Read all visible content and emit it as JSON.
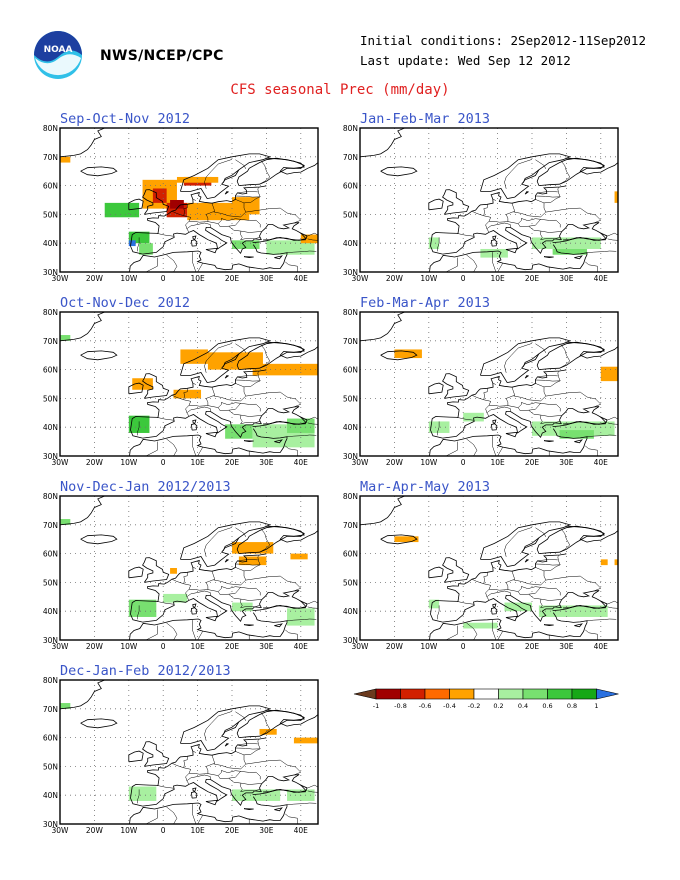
{
  "header": {
    "agency": "NWS/NCEP/CPC",
    "initial_conditions": "Initial conditions: 2Sep2012-11Sep2012",
    "last_update": "Last update: Wed Sep 12 2012",
    "title": "CFS seasonal Prec (mm/day)"
  },
  "axes": {
    "lon_labels": [
      "30W",
      "20W",
      "10W",
      "0",
      "10E",
      "20E",
      "30E",
      "40E"
    ],
    "lat_labels": [
      "80N",
      "70N",
      "60N",
      "50N",
      "40N",
      "30N"
    ]
  },
  "colors": {
    "-1": "#6b3a1e",
    "-0.8": "#a00000",
    "-0.6": "#d22000",
    "-0.4": "#ff6a00",
    "-0.2": "#ffa200",
    "0": "#ffffff",
    "0.2": "#a8f0a0",
    "0.4": "#78e070",
    "0.6": "#3cc83c",
    "0.8": "#16a816",
    "1": "#2a70e0"
  },
  "colorbar": {
    "labels": [
      "-1",
      "-0.8",
      "-0.6",
      "-0.4",
      "-0.2",
      "0.2",
      "0.4",
      "0.6",
      "0.8",
      "1"
    ]
  },
  "panels": [
    {
      "title": "Sep-Oct-Nov 2012",
      "anomalies": [
        {
          "lon": -17,
          "lat": 49,
          "w": 10,
          "h": 5,
          "c": "0.6"
        },
        {
          "lon": -10,
          "lat": 40,
          "w": 6,
          "h": 4,
          "c": "0.6"
        },
        {
          "lon": -7,
          "lat": 36,
          "w": 4,
          "h": 4,
          "c": "0.4"
        },
        {
          "lon": -10,
          "lat": 39,
          "w": 2,
          "h": 2,
          "c": "1"
        },
        {
          "lon": 20,
          "lat": 38,
          "w": 8,
          "h": 3,
          "c": "0.4"
        },
        {
          "lon": 30,
          "lat": 36,
          "w": 14,
          "h": 5,
          "c": "0.2"
        },
        {
          "lon": -30,
          "lat": 68,
          "w": 3,
          "h": 2,
          "c": "-0.2"
        },
        {
          "lon": -6,
          "lat": 52,
          "w": 10,
          "h": 10,
          "c": "-0.2"
        },
        {
          "lon": -3,
          "lat": 54,
          "w": 4,
          "h": 5,
          "c": "-0.6"
        },
        {
          "lon": 1,
          "lat": 49,
          "w": 6,
          "h": 5,
          "c": "-0.6"
        },
        {
          "lon": 2,
          "lat": 52,
          "w": 4,
          "h": 3,
          "c": "-0.8"
        },
        {
          "lon": 7,
          "lat": 48,
          "w": 18,
          "h": 6,
          "c": "-0.2"
        },
        {
          "lon": 20,
          "lat": 50,
          "w": 8,
          "h": 6,
          "c": "-0.2"
        },
        {
          "lon": 6,
          "lat": 60,
          "w": 8,
          "h": 3,
          "c": "-0.6"
        },
        {
          "lon": 4,
          "lat": 61,
          "w": 12,
          "h": 2,
          "c": "-0.2"
        },
        {
          "lon": 40,
          "lat": 40,
          "w": 5,
          "h": 3,
          "c": "-0.2"
        }
      ]
    },
    {
      "title": "Oct-Nov-Dec 2012",
      "anomalies": [
        {
          "lon": -30,
          "lat": 70,
          "w": 3,
          "h": 2,
          "c": "0.4"
        },
        {
          "lon": -10,
          "lat": 38,
          "w": 6,
          "h": 6,
          "c": "0.6"
        },
        {
          "lon": 18,
          "lat": 36,
          "w": 8,
          "h": 5,
          "c": "0.4"
        },
        {
          "lon": 26,
          "lat": 33,
          "w": 18,
          "h": 8,
          "c": "0.2"
        },
        {
          "lon": 36,
          "lat": 38,
          "w": 8,
          "h": 5,
          "c": "0.4"
        },
        {
          "lon": 5,
          "lat": 62,
          "w": 8,
          "h": 5,
          "c": "-0.2"
        },
        {
          "lon": 13,
          "lat": 60,
          "w": 16,
          "h": 6,
          "c": "-0.2"
        },
        {
          "lon": 26,
          "lat": 58,
          "w": 19,
          "h": 4,
          "c": "-0.2"
        },
        {
          "lon": -9,
          "lat": 53,
          "w": 6,
          "h": 4,
          "c": "-0.2"
        },
        {
          "lon": 3,
          "lat": 50,
          "w": 8,
          "h": 3,
          "c": "-0.2"
        }
      ]
    },
    {
      "title": "Nov-Dec-Jan 2012/2013",
      "anomalies": [
        {
          "lon": -30,
          "lat": 70,
          "w": 3,
          "h": 2,
          "c": "0.4"
        },
        {
          "lon": -10,
          "lat": 38,
          "w": 8,
          "h": 6,
          "c": "0.4"
        },
        {
          "lon": 0,
          "lat": 43,
          "w": 7,
          "h": 3,
          "c": "0.2"
        },
        {
          "lon": 20,
          "lat": 40,
          "w": 6,
          "h": 3,
          "c": "0.2"
        },
        {
          "lon": 36,
          "lat": 35,
          "w": 8,
          "h": 6,
          "c": "0.2"
        },
        {
          "lon": 20,
          "lat": 60,
          "w": 12,
          "h": 4,
          "c": "-0.2"
        },
        {
          "lon": 22,
          "lat": 56,
          "w": 8,
          "h": 3,
          "c": "-0.2"
        },
        {
          "lon": 37,
          "lat": 58,
          "w": 5,
          "h": 2,
          "c": "-0.2"
        },
        {
          "lon": 2,
          "lat": 53,
          "w": 2,
          "h": 2,
          "c": "-0.2"
        }
      ]
    },
    {
      "title": "Dec-Jan-Feb 2012/2013",
      "anomalies": [
        {
          "lon": -30,
          "lat": 70,
          "w": 3,
          "h": 2,
          "c": "0.4"
        },
        {
          "lon": -10,
          "lat": 38,
          "w": 8,
          "h": 5,
          "c": "0.2"
        },
        {
          "lon": 20,
          "lat": 38,
          "w": 14,
          "h": 4,
          "c": "0.2"
        },
        {
          "lon": 36,
          "lat": 38,
          "w": 8,
          "h": 4,
          "c": "0.2"
        },
        {
          "lon": 28,
          "lat": 61,
          "w": 5,
          "h": 2,
          "c": "-0.2"
        },
        {
          "lon": 38,
          "lat": 58,
          "w": 7,
          "h": 2,
          "c": "-0.2"
        }
      ]
    },
    {
      "title": "Jan-Feb-Mar 2013",
      "anomalies": [
        {
          "lon": -10,
          "lat": 38,
          "w": 3,
          "h": 4,
          "c": "0.2"
        },
        {
          "lon": 5,
          "lat": 35,
          "w": 8,
          "h": 3,
          "c": "0.2"
        },
        {
          "lon": 20,
          "lat": 38,
          "w": 20,
          "h": 4,
          "c": "0.2"
        },
        {
          "lon": 26,
          "lat": 36,
          "w": 10,
          "h": 2,
          "c": "0.4"
        },
        {
          "lon": 44,
          "lat": 54,
          "w": 1,
          "h": 4,
          "c": "-0.2"
        }
      ]
    },
    {
      "title": "Feb-Mar-Apr 2013",
      "anomalies": [
        {
          "lon": -20,
          "lat": 64,
          "w": 8,
          "h": 3,
          "c": "-0.2"
        },
        {
          "lon": 40,
          "lat": 56,
          "w": 5,
          "h": 5,
          "c": "-0.2"
        },
        {
          "lon": -10,
          "lat": 38,
          "w": 6,
          "h": 4,
          "c": "0.2"
        },
        {
          "lon": 0,
          "lat": 42,
          "w": 6,
          "h": 3,
          "c": "0.2"
        },
        {
          "lon": 20,
          "lat": 37,
          "w": 24,
          "h": 5,
          "c": "0.2"
        },
        {
          "lon": 28,
          "lat": 36,
          "w": 10,
          "h": 3,
          "c": "0.4"
        }
      ]
    },
    {
      "title": "Mar-Apr-May 2013",
      "anomalies": [
        {
          "lon": -20,
          "lat": 64,
          "w": 7,
          "h": 2,
          "c": "-0.2"
        },
        {
          "lon": 40,
          "lat": 56,
          "w": 2,
          "h": 2,
          "c": "-0.2"
        },
        {
          "lon": 44,
          "lat": 56,
          "w": 1,
          "h": 2,
          "c": "-0.2"
        },
        {
          "lon": -10,
          "lat": 41,
          "w": 3,
          "h": 3,
          "c": "0.2"
        },
        {
          "lon": 12,
          "lat": 40,
          "w": 8,
          "h": 3,
          "c": "0.2"
        },
        {
          "lon": 22,
          "lat": 38,
          "w": 20,
          "h": 4,
          "c": "0.2"
        },
        {
          "lon": 0,
          "lat": 34,
          "w": 10,
          "h": 2,
          "c": "0.2"
        }
      ]
    }
  ]
}
